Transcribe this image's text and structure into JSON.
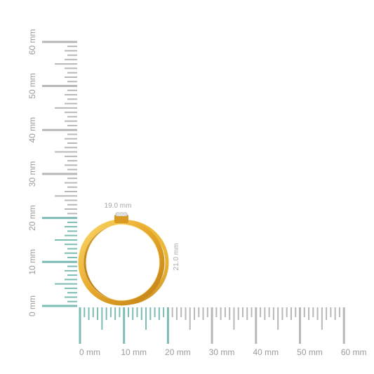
{
  "scale": {
    "unit": "mm",
    "min": 0,
    "max": 60,
    "major_step": 10,
    "minor_step": 1,
    "highlight_max": 20
  },
  "vertical_ruler": {
    "labels": [
      "0 mm",
      "10 mm",
      "20 mm",
      "30 mm",
      "40 mm",
      "50 mm",
      "60 mm"
    ]
  },
  "horizontal_ruler": {
    "labels": [
      "0 mm",
      "10 mm",
      "20 mm",
      "30 mm",
      "40 mm",
      "50 mm",
      "60 mm"
    ]
  },
  "ring": {
    "width_label": "19.0 mm",
    "height_label": "21.0 mm",
    "width_mm": 19.0,
    "height_mm": 21.0
  },
  "colors": {
    "ruler_gray": "#b8b8b8",
    "ruler_teal": "#7cbcb4",
    "label_gray": "#9a9a9a",
    "gold_light": "#f7c948",
    "gold_mid": "#e8a92a",
    "gold_dark": "#c5861a"
  }
}
